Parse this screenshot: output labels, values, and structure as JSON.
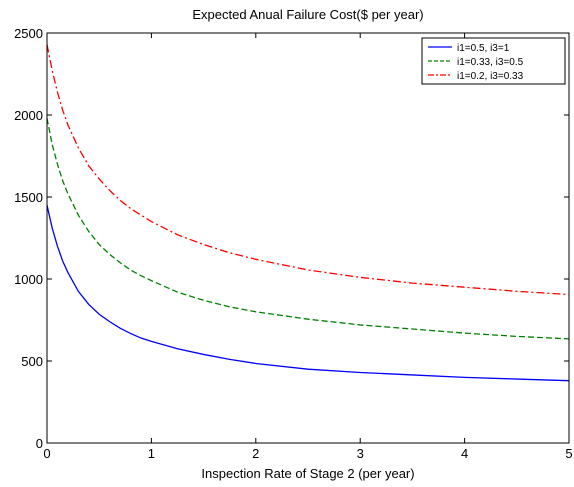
{
  "chart_data": {
    "type": "line",
    "title": "Expected Anual Failure Cost($ per year)",
    "xlabel": "Inspection Rate of Stage 2 (per year)",
    "ylabel": "",
    "xlim": [
      0,
      5
    ],
    "ylim": [
      0,
      2500
    ],
    "xticks": [
      0,
      1,
      2,
      3,
      4,
      5
    ],
    "yticks": [
      0,
      500,
      1000,
      1500,
      2000,
      2500
    ],
    "grid": false,
    "legend_position": "top-right",
    "series": [
      {
        "name": "i1=0.5, i3=1",
        "color": "#0000ff",
        "style": "solid",
        "x": [
          0,
          0.05,
          0.1,
          0.15,
          0.2,
          0.3,
          0.4,
          0.5,
          0.6,
          0.7,
          0.8,
          0.9,
          1.0,
          1.25,
          1.5,
          1.75,
          2.0,
          2.5,
          3.0,
          3.5,
          4.0,
          4.5,
          5.0
        ],
        "y": [
          1450,
          1310,
          1200,
          1110,
          1040,
          925,
          845,
          785,
          740,
          700,
          668,
          640,
          620,
          575,
          540,
          510,
          485,
          450,
          430,
          415,
          400,
          390,
          380
        ]
      },
      {
        "name": "i1=0.33, i3=0.5",
        "color": "#008000",
        "style": "dashed",
        "x": [
          0,
          0.05,
          0.1,
          0.15,
          0.2,
          0.3,
          0.4,
          0.5,
          0.6,
          0.7,
          0.8,
          0.9,
          1.0,
          1.25,
          1.5,
          1.75,
          2.0,
          2.5,
          3.0,
          3.5,
          4.0,
          4.5,
          5.0
        ],
        "y": [
          1980,
          1820,
          1700,
          1600,
          1520,
          1390,
          1290,
          1210,
          1150,
          1100,
          1055,
          1020,
          990,
          920,
          870,
          830,
          800,
          755,
          720,
          695,
          670,
          650,
          635
        ]
      },
      {
        "name": "i1=0.2, i3=0.33",
        "color": "#ff0000",
        "style": "dashdot",
        "x": [
          0,
          0.05,
          0.1,
          0.15,
          0.2,
          0.3,
          0.4,
          0.5,
          0.6,
          0.7,
          0.8,
          0.9,
          1.0,
          1.25,
          1.5,
          1.75,
          2.0,
          2.5,
          3.0,
          3.5,
          4.0,
          4.5,
          5.0
        ],
        "y": [
          2430,
          2270,
          2140,
          2030,
          1940,
          1800,
          1690,
          1610,
          1540,
          1480,
          1430,
          1390,
          1350,
          1270,
          1210,
          1160,
          1120,
          1055,
          1010,
          975,
          950,
          925,
          905
        ]
      }
    ]
  }
}
